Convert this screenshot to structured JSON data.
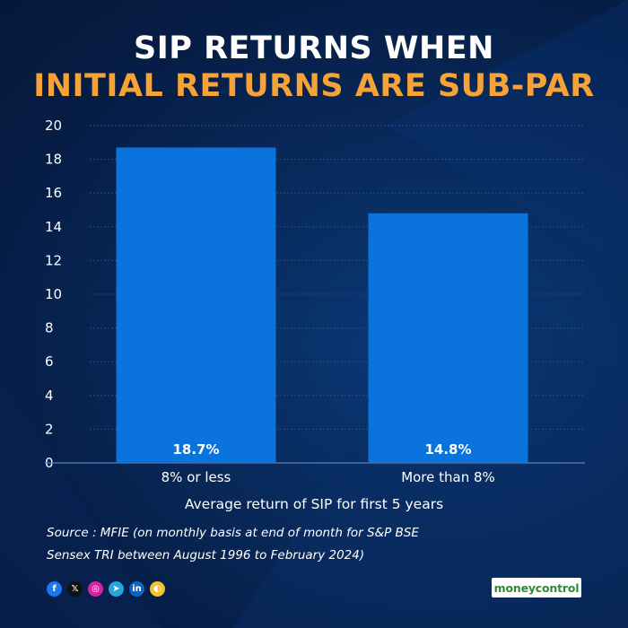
{
  "title_line1": "SIP RETURNS WHEN",
  "title_line2": "INITIAL RETURNS ARE SUB-PAR",
  "chart_data": {
    "type": "bar",
    "categories": [
      "8% or less",
      "More than 8%"
    ],
    "values": [
      18.7,
      14.8
    ],
    "data_labels": [
      "18.7%",
      "14.8%"
    ],
    "xlabel": "Average return of SIP for first 5 years",
    "ylabel": "",
    "ylim": [
      0,
      20
    ],
    "yticks": [
      0,
      2,
      4,
      6,
      8,
      10,
      12,
      14,
      16,
      18,
      20
    ],
    "grid": true,
    "legend": "none"
  },
  "source_line1": "Source : MFIE (on monthly basis at end of month for S&P BSE",
  "source_line2": "Sensex TRI between August 1996 to February 2024)",
  "social_icons": [
    {
      "name": "facebook-icon",
      "glyph": "f",
      "color": "#1877f2"
    },
    {
      "name": "x-icon",
      "glyph": "𝕏",
      "color": "#111111"
    },
    {
      "name": "instagram-icon",
      "glyph": "◎",
      "color": "#d6249f"
    },
    {
      "name": "telegram-icon",
      "glyph": "➤",
      "color": "#2aa3df"
    },
    {
      "name": "linkedin-icon",
      "glyph": "in",
      "color": "#0a66c2"
    },
    {
      "name": "koo-icon",
      "glyph": "◐",
      "color": "#f2c230"
    }
  ],
  "brand": "moneycontrol",
  "colors": {
    "bar": "#0a73dc",
    "title_accent": "#f5a238",
    "grid": "#2c4a78",
    "brand_green": "#2e8b3a"
  }
}
